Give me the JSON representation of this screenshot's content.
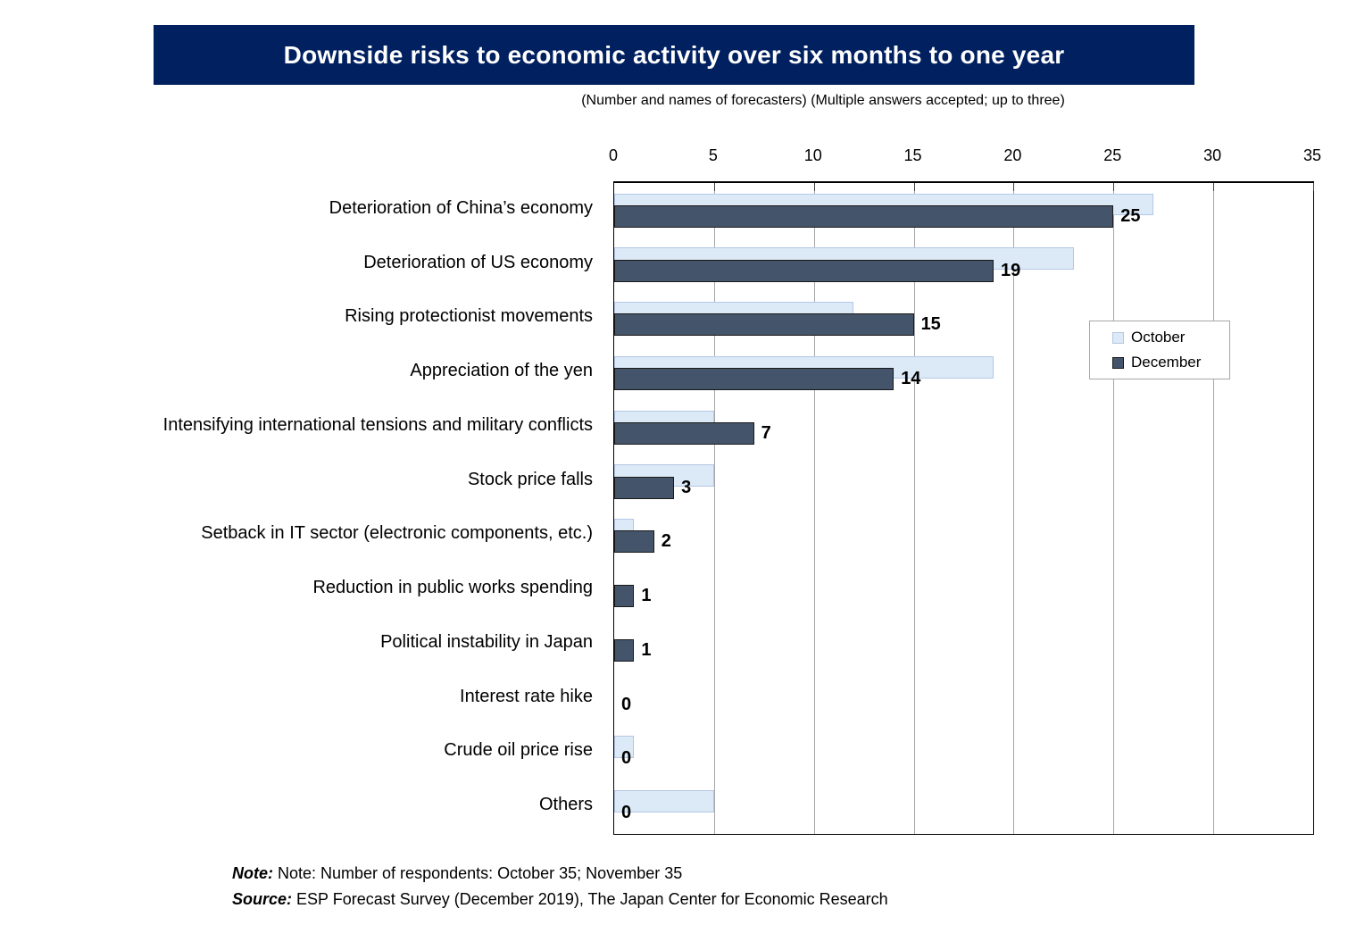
{
  "colors": {
    "banner_bg": "#002060",
    "banner_text": "#ffffff",
    "october_fill": "#dce9f6",
    "october_border": "#b4c7e7",
    "december_fill": "#44546a",
    "december_border": "#1a1a1a",
    "gridline": "#a6a6a6",
    "legend_border": "#a6a6a6"
  },
  "chart_data": {
    "type": "bar",
    "orientation": "horizontal",
    "axis_position": "top",
    "grid": "vertical-only",
    "legend_position": "inside-right",
    "title": "Downside risks to economic activity over six months to one year",
    "subtitle": "(Number and names of forecasters)  (Multiple answers accepted; up to three)",
    "xlabel": "",
    "ylabel": "",
    "xlim": [
      0,
      35
    ],
    "xticks": [
      0,
      5,
      10,
      15,
      20,
      25,
      30,
      35
    ],
    "categories": [
      "Deterioration of China’s economy",
      "Deterioration of US economy",
      "Rising protectionist movements",
      "Appreciation of the yen",
      "Intensifying international tensions and military conflicts",
      "Stock price falls",
      "Setback in IT sector (electronic components, etc.)",
      "Reduction in public works spending",
      "Political instability in Japan",
      "Interest rate hike",
      "Crude oil price rise",
      "Others"
    ],
    "series": [
      {
        "name": "October",
        "values": [
          27,
          23,
          12,
          19,
          5,
          5,
          1,
          0,
          0,
          0,
          1,
          5
        ],
        "data_labels": false
      },
      {
        "name": "December",
        "values": [
          25,
          19,
          15,
          14,
          7,
          3,
          2,
          1,
          1,
          0,
          0,
          0
        ],
        "data_labels": true
      }
    ]
  },
  "note": {
    "label": "Note:",
    "text": " Note: Number of respondents: October 35; November 35"
  },
  "source": {
    "label": "Source:",
    "text": " ESP Forecast Survey (December 2019), The Japan Center for Economic Research"
  }
}
